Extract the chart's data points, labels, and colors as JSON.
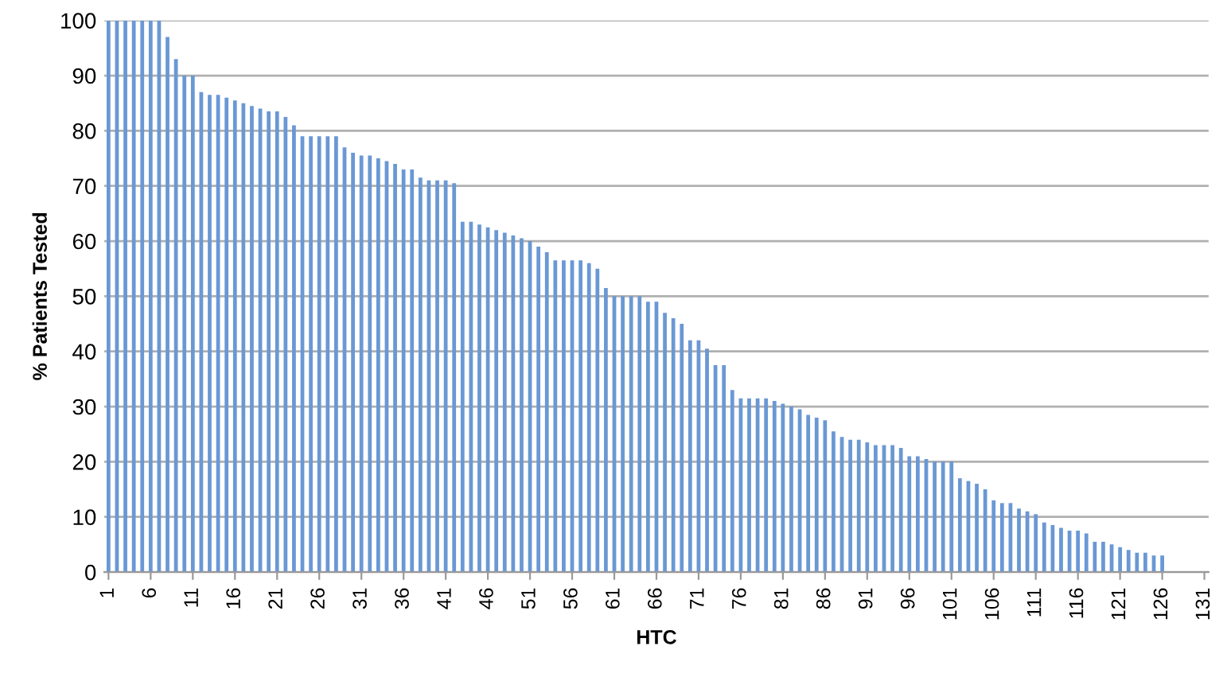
{
  "chart_data": {
    "type": "bar",
    "xlabel": "HTC",
    "ylabel": "% Patients Tested",
    "categories": [
      "1",
      null,
      null,
      null,
      null,
      "6",
      null,
      null,
      null,
      null,
      "11",
      null,
      null,
      null,
      null,
      "16",
      null,
      null,
      null,
      null,
      "21",
      null,
      null,
      null,
      null,
      "26",
      null,
      null,
      null,
      null,
      "31",
      null,
      null,
      null,
      null,
      "36",
      null,
      null,
      null,
      null,
      "41",
      null,
      null,
      null,
      null,
      "46",
      null,
      null,
      null,
      null,
      "51",
      null,
      null,
      null,
      null,
      "56",
      null,
      null,
      null,
      null,
      "61",
      null,
      null,
      null,
      null,
      "66",
      null,
      null,
      null,
      null,
      "71",
      null,
      null,
      null,
      null,
      "76",
      null,
      null,
      null,
      null,
      "81",
      null,
      null,
      null,
      null,
      "86",
      null,
      null,
      null,
      null,
      "91",
      null,
      null,
      null,
      null,
      "96",
      null,
      null,
      null,
      null,
      "101",
      null,
      null,
      null,
      null,
      "106",
      null,
      null,
      null,
      null,
      "111",
      null,
      null,
      null,
      null,
      "116",
      null,
      null,
      null,
      null,
      "121",
      null,
      null,
      null,
      null,
      "126",
      null,
      null,
      null,
      null,
      "131"
    ],
    "values": [
      100,
      100,
      100,
      100,
      100,
      100,
      100,
      97,
      93,
      90,
      90,
      87,
      86.5,
      86.5,
      86,
      85.5,
      85,
      84.5,
      84,
      83.5,
      83.5,
      82.5,
      81,
      79,
      79,
      79,
      79,
      79,
      77,
      76,
      75.5,
      75.5,
      75,
      74.5,
      74,
      73,
      73,
      71.5,
      71,
      71,
      71,
      70.5,
      63.5,
      63.5,
      63,
      62.5,
      62,
      61.5,
      61,
      60.5,
      60,
      59,
      58,
      56.5,
      56.5,
      56.5,
      56.5,
      56,
      55,
      51.5,
      50,
      50,
      50,
      50,
      49,
      49,
      47,
      46,
      45,
      42,
      42,
      40.5,
      37.5,
      37.5,
      33,
      31.5,
      31.5,
      31.5,
      31.5,
      31,
      30.5,
      30,
      29.5,
      28.5,
      28,
      27.5,
      25.5,
      24.5,
      24,
      24,
      23.5,
      23,
      23,
      23,
      22.5,
      21,
      21,
      20.5,
      20,
      20,
      20,
      17,
      16.5,
      16,
      15,
      13,
      12.5,
      12.5,
      11.5,
      11,
      10.5,
      9,
      8.5,
      8,
      7.5,
      7.5,
      7,
      5.5,
      5.5,
      5,
      4.5,
      4,
      3.5,
      3.5,
      3,
      3,
      null,
      null,
      null,
      null,
      null
    ],
    "color": "#6a98d4",
    "ylim": [
      0,
      100
    ],
    "yticks": [
      0,
      10,
      20,
      30,
      40,
      50,
      60,
      70,
      80,
      90,
      100
    ],
    "grid": "y"
  }
}
